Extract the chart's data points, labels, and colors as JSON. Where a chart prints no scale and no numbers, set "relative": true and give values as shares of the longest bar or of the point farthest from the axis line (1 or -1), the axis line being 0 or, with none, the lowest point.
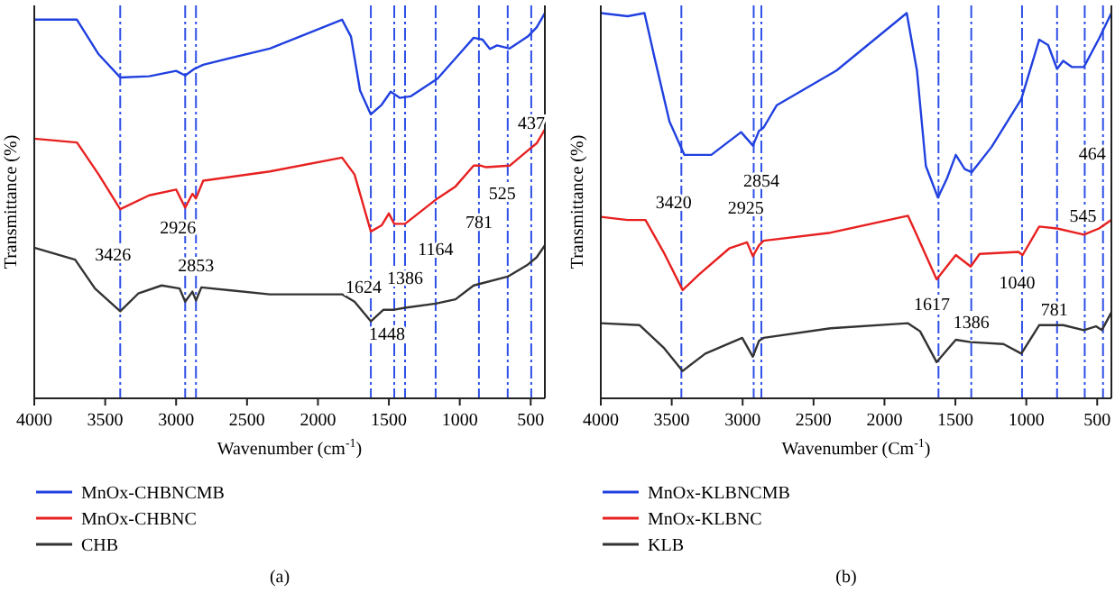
{
  "chart_data": [
    {
      "type": "line",
      "title": "(a)",
      "xlabel": "Wavenumber (cm$^{-1}$)",
      "ylabel": "Transmittance (%)",
      "relative": true,
      "xlim": [
        4000,
        400
      ],
      "xticks": [
        4000,
        3500,
        3000,
        2500,
        2000,
        1500,
        1000,
        500
      ],
      "legend": "bottom",
      "line_style": "solid",
      "series": [
        {
          "name": "MnOx-CHBNCMB",
          "color": "#2040e0",
          "x": [
            4000,
            3699,
            3546,
            3394,
            3190,
            3000,
            2936,
            2872,
            2809,
            2339,
            1830,
            1767,
            1703,
            1627,
            1551,
            1487,
            1424,
            1347,
            1157,
            902,
            839,
            788,
            737,
            648,
            521,
            458,
            400
          ],
          "values": [
            0.983,
            0.983,
            0.893,
            0.833,
            0.836,
            0.85,
            0.838,
            0.855,
            0.866,
            0.908,
            0.983,
            0.939,
            0.799,
            0.737,
            0.762,
            0.796,
            0.78,
            0.784,
            0.83,
            0.936,
            0.931,
            0.907,
            0.916,
            0.908,
            0.939,
            0.963,
            1
          ]
        },
        {
          "name": "MnOx-CHBNC",
          "color": "#e82020",
          "x": [
            4000,
            3699,
            3546,
            3394,
            3190,
            3000,
            2936,
            2885,
            2860,
            2809,
            2339,
            1830,
            1742,
            1627,
            1551,
            1500,
            1462,
            1386,
            1157,
            1030,
            902,
            851,
            813,
            648,
            521,
            458,
            400
          ],
          "values": [
            0.674,
            0.664,
            0.581,
            0.491,
            0.527,
            0.542,
            0.495,
            0.531,
            0.519,
            0.565,
            0.589,
            0.625,
            0.581,
            0.433,
            0.449,
            0.48,
            0.453,
            0.453,
            0.519,
            0.55,
            0.604,
            0.604,
            0.6,
            0.604,
            0.643,
            0.662,
            0.698
          ]
        },
        {
          "name": "CHB",
          "color": "#333333",
          "x": [
            4000,
            3712,
            3572,
            3394,
            3267,
            3102,
            2975,
            2936,
            2885,
            2860,
            2822,
            2339,
            1830,
            1742,
            1627,
            1538,
            1462,
            1386,
            1170,
            1030,
            902,
            662,
            521,
            458,
            400
          ],
          "values": [
            0.391,
            0.36,
            0.285,
            0.226,
            0.272,
            0.293,
            0.285,
            0.251,
            0.277,
            0.254,
            0.288,
            0.27,
            0.27,
            0.251,
            0.2,
            0.23,
            0.23,
            0.235,
            0.246,
            0.257,
            0.293,
            0.316,
            0.347,
            0.366,
            0.397
          ]
        }
      ],
      "ref_lines": [
        {
          "axis": "x",
          "value": 3394,
          "color": "#2f50e8",
          "line_style": "dashed"
        },
        {
          "axis": "x",
          "value": 2936,
          "color": "#2f50e8",
          "line_style": "dashed"
        },
        {
          "axis": "x",
          "value": 2860,
          "color": "#2f50e8",
          "line_style": "dashed"
        },
        {
          "axis": "x",
          "value": 1627,
          "color": "#2f50e8",
          "line_style": "dashed"
        },
        {
          "axis": "x",
          "value": 1462,
          "color": "#2f50e8",
          "line_style": "dashed"
        },
        {
          "axis": "x",
          "value": 1386,
          "color": "#2f50e8",
          "line_style": "dashed"
        },
        {
          "axis": "x",
          "value": 1170,
          "color": "#2f50e8",
          "line_style": "dashed"
        },
        {
          "axis": "x",
          "value": 865,
          "color": "#2f50e8",
          "line_style": "dashed"
        },
        {
          "axis": "x",
          "value": 662,
          "color": "#2f50e8",
          "line_style": "dashed"
        },
        {
          "axis": "x",
          "value": 496,
          "color": "#2f50e8",
          "line_style": "dashed"
        }
      ],
      "annotations": [
        {
          "text": "437",
          "x": 496,
          "y": 0.717
        },
        {
          "text": "2926",
          "x": 2987,
          "y": 0.444
        },
        {
          "text": "525",
          "x": 700,
          "y": 0.533
        },
        {
          "text": "781",
          "x": 865,
          "y": 0.458
        },
        {
          "text": "3426",
          "x": 3445,
          "y": 0.374
        },
        {
          "text": "1164",
          "x": 1170,
          "y": 0.388
        },
        {
          "text": "2853",
          "x": 2860,
          "y": 0.346
        },
        {
          "text": "1624",
          "x": 1678,
          "y": 0.29
        },
        {
          "text": "1386",
          "x": 1386,
          "y": 0.313
        },
        {
          "text": "1448",
          "x": 1513,
          "y": 0.168
        }
      ]
    },
    {
      "type": "line",
      "title": "(b)",
      "xlabel": "Wavenumber (Cm$^{-1}$)",
      "ylabel": "Transmittance (%)",
      "relative": true,
      "xlim": [
        4000,
        400
      ],
      "xticks": [
        4000,
        3500,
        3000,
        2500,
        2000,
        1500,
        1000,
        500
      ],
      "legend": "bottom",
      "line_style": "solid",
      "series": [
        {
          "name": "MnOx-KLBNCMB",
          "color": "#2040e0",
          "x": [
            4000,
            3811,
            3692,
            3621,
            3516,
            3411,
            3221,
            3011,
            2927,
            2885,
            2852,
            2759,
            2338,
            1843,
            1771,
            1708,
            1623,
            1560,
            1497,
            1434,
            1384,
            1244,
            1035,
            909,
            846,
            783,
            740,
            677,
            594,
            487,
            400
          ],
          "values": [
            1,
            0.992,
            1,
            0.884,
            0.719,
            0.632,
            0.632,
            0.691,
            0.656,
            0.694,
            0.703,
            0.761,
            0.851,
            1,
            0.851,
            0.603,
            0.521,
            0.57,
            0.632,
            0.595,
            0.587,
            0.653,
            0.777,
            0.931,
            0.917,
            0.855,
            0.876,
            0.86,
            0.86,
            0.934,
            1
          ]
        },
        {
          "name": "MnOx-KLBNC",
          "color": "#e82020",
          "x": [
            4000,
            3811,
            3685,
            3558,
            3423,
            3306,
            3095,
            2969,
            2928,
            2885,
            2852,
            2380,
            1834,
            1749,
            1632,
            1497,
            1392,
            1329,
            1055,
            1026,
            909,
            783,
            594,
            487,
            400
          ],
          "values": [
            0.471,
            0.463,
            0.463,
            0.38,
            0.281,
            0.322,
            0.389,
            0.405,
            0.369,
            0.397,
            0.409,
            0.43,
            0.474,
            0.405,
            0.309,
            0.372,
            0.342,
            0.375,
            0.38,
            0.372,
            0.446,
            0.441,
            0.425,
            0.441,
            0.463
          ]
        },
        {
          "name": "KLB",
          "color": "#333333",
          "x": [
            4000,
            3726,
            3558,
            3423,
            3263,
            3003,
            2928,
            2885,
            2852,
            2380,
            1834,
            1749,
            1632,
            1497,
            1392,
            1161,
            1035,
            909,
            740,
            594,
            509,
            467,
            400
          ],
          "values": [
            0.195,
            0.19,
            0.132,
            0.071,
            0.116,
            0.157,
            0.108,
            0.149,
            0.157,
            0.182,
            0.195,
            0.174,
            0.094,
            0.152,
            0.146,
            0.141,
            0.116,
            0.19,
            0.19,
            0.177,
            0.187,
            0.177,
            0.223
          ]
        }
      ],
      "ref_lines": [
        {
          "axis": "x",
          "value": 3432,
          "color": "#2f50e8",
          "line_style": "dashed"
        },
        {
          "axis": "x",
          "value": 2922,
          "color": "#2f50e8",
          "line_style": "dashed"
        },
        {
          "axis": "x",
          "value": 2868,
          "color": "#2f50e8",
          "line_style": "dashed"
        },
        {
          "axis": "x",
          "value": 1619,
          "color": "#2f50e8",
          "line_style": "dashed"
        },
        {
          "axis": "x",
          "value": 1388,
          "color": "#2f50e8",
          "line_style": "dashed"
        },
        {
          "axis": "x",
          "value": 1030,
          "color": "#2f50e8",
          "line_style": "dashed"
        },
        {
          "axis": "x",
          "value": 783,
          "color": "#2f50e8",
          "line_style": "dashed"
        },
        {
          "axis": "x",
          "value": 588,
          "color": "#2f50e8",
          "line_style": "dashed"
        },
        {
          "axis": "x",
          "value": 459,
          "color": "#2f50e8",
          "line_style": "dashed"
        }
      ],
      "annotations": [
        {
          "text": "3420",
          "x": 3487,
          "y": 0.509
        },
        {
          "text": "2925",
          "x": 2978,
          "y": 0.496
        },
        {
          "text": "2854",
          "x": 2868,
          "y": 0.565
        },
        {
          "text": "464",
          "x": 535,
          "y": 0.637
        },
        {
          "text": "545",
          "x": 601,
          "y": 0.474
        },
        {
          "text": "1040",
          "x": 1064,
          "y": 0.301
        },
        {
          "text": "1617",
          "x": 1666,
          "y": 0.245
        },
        {
          "text": "1386",
          "x": 1388,
          "y": 0.198
        },
        {
          "text": "781",
          "x": 803,
          "y": 0.232
        }
      ]
    }
  ]
}
